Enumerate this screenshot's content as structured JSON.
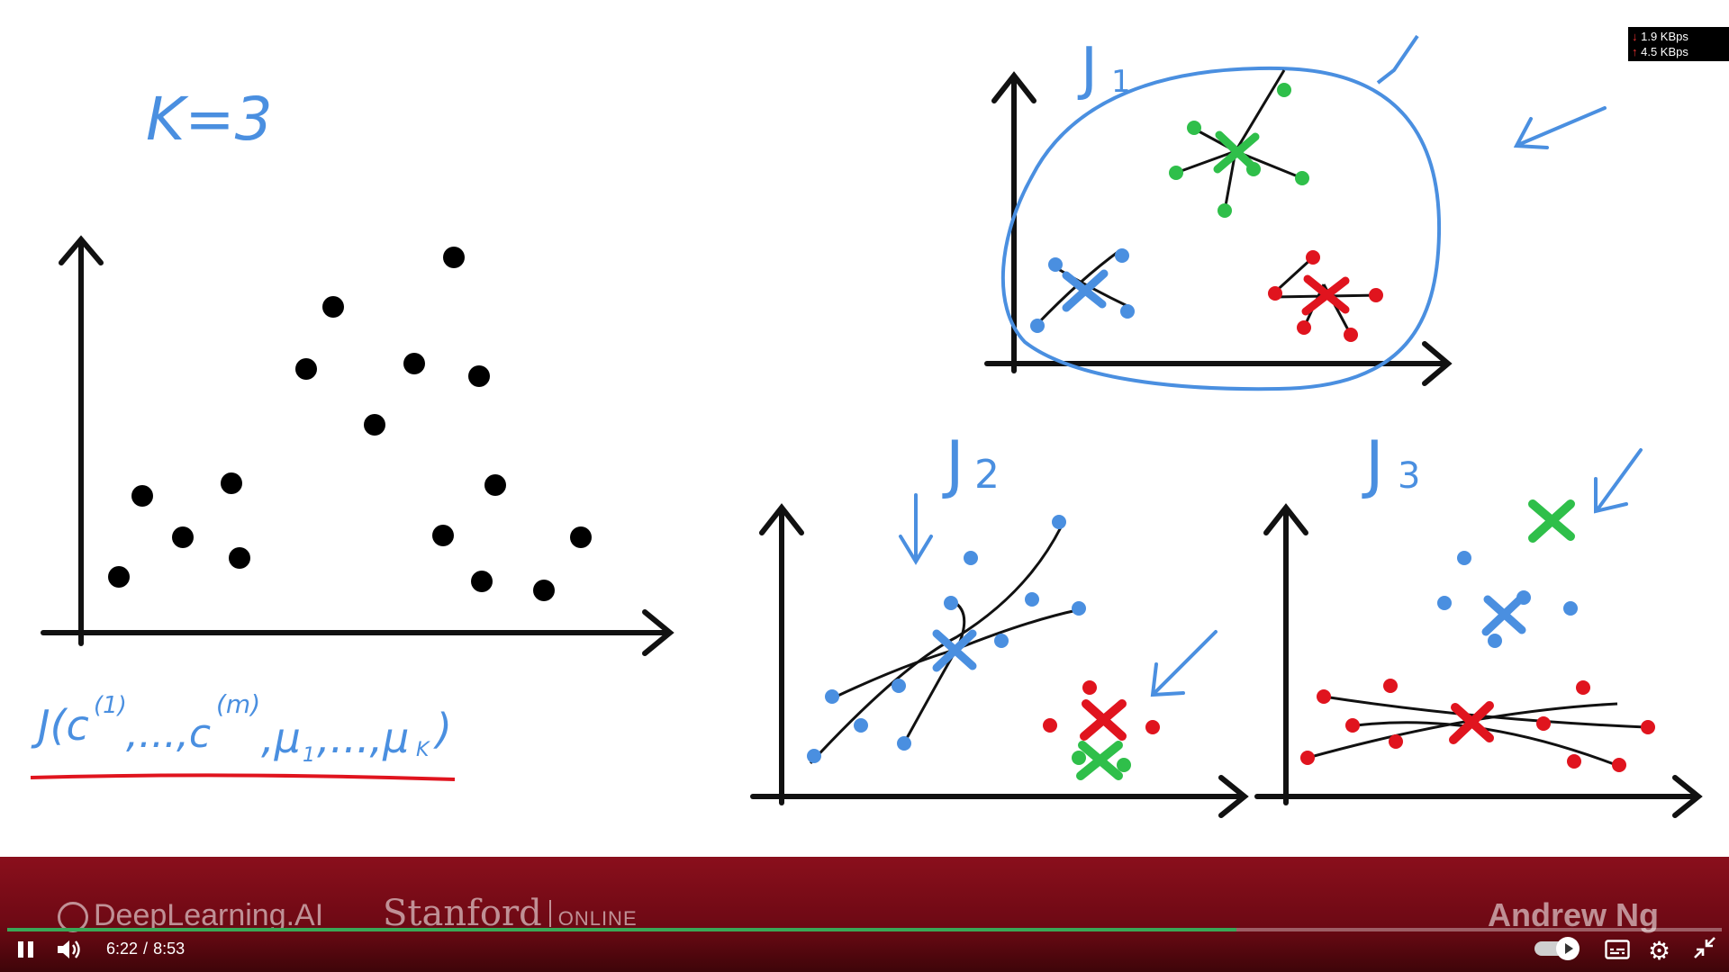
{
  "lecture": {
    "k_label": "K=3",
    "cost_label": "J(c",
    "cost_sup_1": "(1)",
    "cost_mid": ",...,c",
    "cost_sup_m": "(m)",
    "cost_mu": ",μ",
    "cost_sub_1": "1",
    "cost_dots": ",...,μ",
    "cost_sub_k": "K",
    "cost_close": ")",
    "j1_label": "J",
    "j1_sub": "1",
    "j2_label": "J",
    "j2_sub": "2",
    "j3_label": "J",
    "j3_sub": "3"
  },
  "colors": {
    "ink": "#111111",
    "blue": "#4a8fe0",
    "green": "#2fbf4a",
    "red": "#e0141e",
    "banner": "#7a0c17"
  },
  "branding": {
    "deeplearning": "DeepLearning.AI",
    "stanford": "Stanford",
    "online": "ONLINE",
    "author": "Andrew Ng"
  },
  "player": {
    "current_time": "6:22",
    "separator": "/",
    "duration": "8:53",
    "progress_fraction": 0.717,
    "autoplay": true
  },
  "netstats": {
    "down": "1.9 KBps",
    "up": "4.5 KBps"
  },
  "icons": {
    "pause": "pause-icon",
    "volume": "volume-icon",
    "captions": "captions-icon",
    "settings": "gear-icon",
    "exit_fullscreen": "exit-fullscreen-icon"
  }
}
